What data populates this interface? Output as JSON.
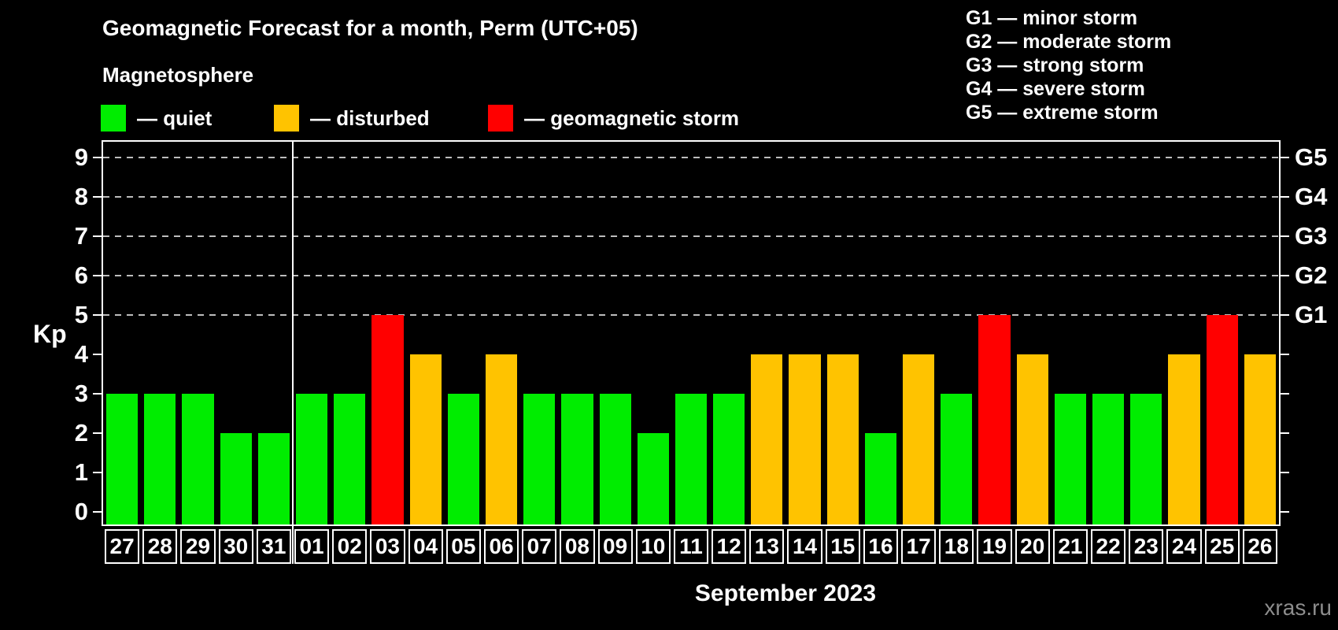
{
  "header": {
    "title": "Geomagnetic Forecast for a month, Perm (UTC+05)"
  },
  "magnetosphere_legend": {
    "title": "Magnetosphere",
    "items": [
      {
        "state": "quiet",
        "label": "— quiet"
      },
      {
        "state": "disturbed",
        "label": "— disturbed"
      },
      {
        "state": "storm",
        "label": "— geomagnetic storm"
      }
    ]
  },
  "g_legend": {
    "items": [
      "G1 — minor storm",
      "G2 — moderate storm",
      "G3 — strong storm",
      "G4 — severe storm",
      "G5 — extreme storm"
    ]
  },
  "colors": {
    "quiet": "#00ed00",
    "disturbed": "#ffc300",
    "storm": "#ff0000",
    "grid": "#bdbdbd",
    "axis": "#ffffff",
    "background": "#000000",
    "watermark": "#8d8d8d"
  },
  "axes": {
    "y_label": "Kp",
    "y_ticks": [
      0,
      1,
      2,
      3,
      4,
      5,
      6,
      7,
      8,
      9
    ],
    "grid_values": [
      5,
      6,
      7,
      8,
      9
    ],
    "right_labels": [
      {
        "value": 5,
        "label": "G1"
      },
      {
        "value": 6,
        "label": "G2"
      },
      {
        "value": 7,
        "label": "G3"
      },
      {
        "value": 8,
        "label": "G4"
      },
      {
        "value": 9,
        "label": "G5"
      }
    ]
  },
  "footer": {
    "month_label": "September 2023",
    "watermark": "xras.ru"
  },
  "chart_data": {
    "type": "bar",
    "title": "Geomagnetic Forecast for a month, Perm (UTC+05)",
    "subtitle": "Magnetosphere",
    "xlabel": "September 2023",
    "ylabel": "Kp",
    "ylim": [
      0,
      9.4
    ],
    "grid": "horizontal dashed lines at Kp 5-9 (G1-G5)",
    "legend_position": "top-left states, top-right G-scale",
    "separator_after_index": 4,
    "categories": [
      "27",
      "28",
      "29",
      "30",
      "31",
      "01",
      "02",
      "03",
      "04",
      "05",
      "06",
      "07",
      "08",
      "09",
      "10",
      "11",
      "12",
      "13",
      "14",
      "15",
      "16",
      "17",
      "18",
      "19",
      "20",
      "21",
      "22",
      "23",
      "24",
      "25",
      "26"
    ],
    "values": [
      3,
      3,
      3,
      2,
      2,
      3,
      3,
      5,
      4,
      3,
      4,
      3,
      3,
      3,
      2,
      3,
      3,
      4,
      4,
      4,
      2,
      4,
      3,
      5,
      4,
      3,
      3,
      3,
      4,
      5,
      4
    ],
    "states": [
      "quiet",
      "quiet",
      "quiet",
      "quiet",
      "quiet",
      "quiet",
      "quiet",
      "storm",
      "disturbed",
      "quiet",
      "disturbed",
      "quiet",
      "quiet",
      "quiet",
      "quiet",
      "quiet",
      "quiet",
      "disturbed",
      "disturbed",
      "disturbed",
      "quiet",
      "disturbed",
      "quiet",
      "storm",
      "disturbed",
      "quiet",
      "quiet",
      "quiet",
      "disturbed",
      "storm",
      "disturbed"
    ]
  }
}
